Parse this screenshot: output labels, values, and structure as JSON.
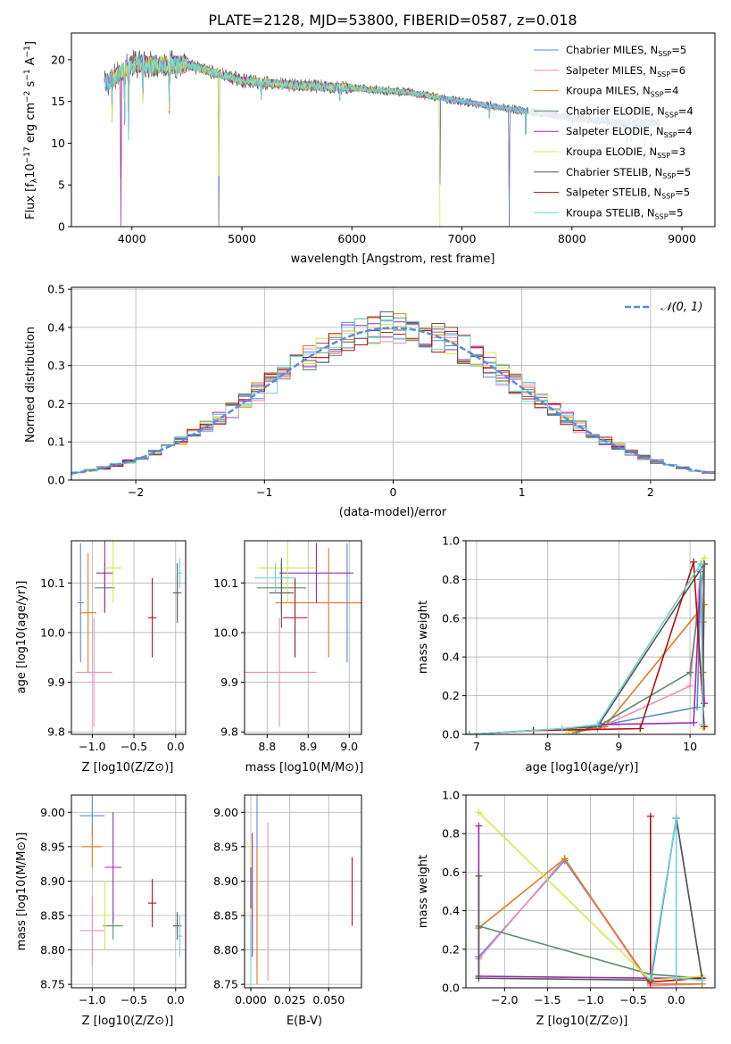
{
  "title": "PLATE=2128, MJD=53800, FIBERID=0587, z=0.018",
  "colors": {
    "chabrier_miles": "#5b8bd9",
    "salpeter_miles": "#f08cbf",
    "kroupa_miles": "#e07b24",
    "chabrier_elodie": "#5e8c6a",
    "salpeter_elodie": "#9b2db0",
    "kroupa_elodie": "#d4e84a",
    "chabrier_stelib": "#555555",
    "salpeter_stelib": "#b01010",
    "kroupa_stelib": "#6ed4d8",
    "gaussian": "#5b8bd9"
  },
  "legend_labels": [
    "Chabrier MILES, N",
    "Salpeter MILES, N",
    "Kroupa MILES, N",
    "Chabrier ELODIE, N",
    "Salpeter ELODIE, N",
    "Kroupa ELODIE, N",
    "Chabrier STELIB, N",
    "Salpeter STELIB, N",
    "Kroupa STELIB, N"
  ],
  "legend_sub": "SSP",
  "legend_counts": [
    "=5",
    "=6",
    "=4",
    "=4",
    "=4",
    "=3",
    "=5",
    "=5",
    "=5"
  ],
  "chart_data": [
    {
      "id": "spectrum",
      "type": "line",
      "xlabel_main": "wavelength [Angstrom, rest frame]",
      "ylabel_main": "Flux [f",
      "ylabel_lambda": "λ",
      "ylabel_mid": "10",
      "ylabel_exp1": "−17",
      "ylabel_unit": " erg cm",
      "ylabel_exp2": "−2",
      "ylabel_s": " s",
      "ylabel_exp3": "−1",
      "ylabel_A": " A",
      "ylabel_exp4": "−1",
      "ylabel_end": "]",
      "xlim": [
        3450,
        9300
      ],
      "ylim": [
        0,
        23.2
      ],
      "xticks": [
        4000,
        5000,
        6000,
        7000,
        8000,
        9000
      ],
      "yticks": [
        0,
        5,
        10,
        15,
        20
      ],
      "continuum": [
        [
          3750,
          17.0
        ],
        [
          4000,
          19.5
        ],
        [
          4500,
          19.4
        ],
        [
          5000,
          17.5
        ],
        [
          5500,
          16.9
        ],
        [
          6000,
          16.6
        ],
        [
          6500,
          16.1
        ],
        [
          7000,
          15.0
        ],
        [
          7500,
          14.0
        ],
        [
          8000,
          13.0
        ],
        [
          8500,
          12.4
        ],
        [
          8800,
          12.4
        ]
      ],
      "absorption_dips": [
        [
          3820,
          10.5
        ],
        [
          3900,
          0.0
        ],
        [
          3934,
          10.0
        ],
        [
          3970,
          7.0
        ],
        [
          4100,
          13.0
        ],
        [
          4340,
          11.0
        ],
        [
          4790,
          0.0
        ],
        [
          5175,
          14.0
        ],
        [
          5890,
          14.5
        ],
        [
          6560,
          15.5
        ],
        [
          6800,
          0.0
        ],
        [
          7250,
          12.5
        ],
        [
          7430,
          0.0
        ],
        [
          7580,
          8.0
        ],
        [
          8500,
          8.0
        ],
        [
          8540,
          8.0
        ],
        [
          8660,
          7.0
        ]
      ]
    },
    {
      "id": "residuals",
      "type": "histogram",
      "xlabel": "(data-model)/error",
      "ylabel": "Normed distribution",
      "xlim": [
        -2.5,
        2.5
      ],
      "ylim": [
        0,
        0.505
      ],
      "xticks": [
        -2,
        -1,
        0,
        1,
        2
      ],
      "yticks": [
        0.0,
        0.1,
        0.2,
        0.3,
        0.4,
        0.5
      ],
      "bin_width": 0.1,
      "legend": "𝒩(0, 1)",
      "gaussian": {
        "mu": 0,
        "sigma": 1
      }
    },
    {
      "id": "age_vs_Z",
      "type": "errorbar",
      "xlabel": "Z [log10(Z/Z⊙)]",
      "ylabel": "age  [log10(age/yr)]",
      "xlim": [
        -1.25,
        0.12
      ],
      "ylim": [
        9.795,
        10.185
      ],
      "xticks": [
        -1.0,
        -0.5,
        0.0
      ],
      "yticks": [
        9.8,
        9.9,
        10.0,
        10.1
      ],
      "points": [
        {
          "s": "chabrier_miles",
          "x": -1.14,
          "xerr": 0.04,
          "y": 10.06,
          "yerr": 0.12
        },
        {
          "s": "salpeter_miles",
          "x": -0.98,
          "xerr": 0.22,
          "y": 9.92,
          "yerr": 0.11
        },
        {
          "s": "kroupa_miles",
          "x": -1.05,
          "xerr": 0.1,
          "y": 10.04,
          "yerr": 0.12
        },
        {
          "s": "chabrier_elodie",
          "x": -0.85,
          "xerr": 0.12,
          "y": 10.09,
          "yerr": 0.05
        },
        {
          "s": "salpeter_elodie",
          "x": -0.85,
          "xerr": 0.1,
          "y": 10.12,
          "yerr": 0.08
        },
        {
          "s": "kroupa_elodie",
          "x": -0.75,
          "xerr": 0.1,
          "y": 10.13,
          "yerr": 0.07
        },
        {
          "s": "chabrier_stelib",
          "x": 0.02,
          "xerr": 0.05,
          "y": 10.08,
          "yerr": 0.06
        },
        {
          "s": "salpeter_stelib",
          "x": -0.28,
          "xerr": 0.05,
          "y": 10.03,
          "yerr": 0.08
        },
        {
          "s": "kroupa_stelib",
          "x": 0.05,
          "xerr": 0.03,
          "y": 10.12,
          "yerr": 0.03
        }
      ]
    },
    {
      "id": "age_vs_mass",
      "type": "errorbar",
      "xlabel": "mass [log10(M/M⊙)]",
      "ylabel": "",
      "xlim": [
        8.745,
        9.03
      ],
      "ylim": [
        9.795,
        10.185
      ],
      "xticks": [
        8.8,
        8.9,
        9.0
      ],
      "yticks": [
        9.8,
        9.9,
        10.0,
        10.1
      ],
      "points": [
        {
          "s": "chabrier_miles",
          "x": 8.995,
          "xerr": 0.03,
          "y": 10.06,
          "yerr": 0.12
        },
        {
          "s": "salpeter_miles",
          "x": 8.83,
          "xerr": 0.09,
          "y": 9.92,
          "yerr": 0.11
        },
        {
          "s": "kroupa_miles",
          "x": 8.95,
          "xerr": 0.13,
          "y": 10.06,
          "yerr": 0.11
        },
        {
          "s": "chabrier_elodie",
          "x": 8.835,
          "xerr": 0.06,
          "y": 10.09,
          "yerr": 0.05
        },
        {
          "s": "salpeter_elodie",
          "x": 8.92,
          "xerr": 0.09,
          "y": 10.12,
          "yerr": 0.06
        },
        {
          "s": "kroupa_elodie",
          "x": 8.85,
          "xerr": 0.07,
          "y": 10.13,
          "yerr": 0.07
        },
        {
          "s": "chabrier_stelib",
          "x": 8.835,
          "xerr": 0.03,
          "y": 10.08,
          "yerr": 0.07
        },
        {
          "s": "salpeter_stelib",
          "x": 8.868,
          "xerr": 0.03,
          "y": 10.03,
          "yerr": 0.08
        },
        {
          "s": "kroupa_stelib",
          "x": 8.82,
          "xerr": 0.05,
          "y": 10.11,
          "yerr": 0.03
        }
      ]
    },
    {
      "id": "weight_vs_age",
      "type": "line",
      "xlabel": "age  [log10(age/yr)]",
      "ylabel": "mass weight",
      "xlim": [
        6.85,
        10.35
      ],
      "ylim": [
        0,
        1.0
      ],
      "xticks": [
        7,
        8,
        9,
        10
      ],
      "yticks": [
        0.0,
        0.2,
        0.4,
        0.6,
        0.8,
        1.0
      ],
      "series": [
        {
          "s": "chabrier_miles",
          "x": [
            8.3,
            8.8,
            10.1,
            10.15,
            10.2
          ],
          "y": [
            0.01,
            0.05,
            0.14,
            0.8,
            0.16
          ]
        },
        {
          "s": "salpeter_miles",
          "x": [
            8.35,
            8.7,
            10.0,
            10.15,
            10.2
          ],
          "y": [
            0.01,
            0.03,
            0.25,
            0.85,
            0.16
          ]
        },
        {
          "s": "kroupa_miles",
          "x": [
            8.35,
            8.8,
            10.2,
            10.18
          ],
          "y": [
            0.01,
            0.04,
            0.67,
            0.32
          ]
        },
        {
          "s": "chabrier_elodie",
          "x": [
            8.4,
            8.75,
            10.0,
            10.2,
            10.18
          ],
          "y": [
            0.01,
            0.05,
            0.32,
            0.88,
            0.58
          ]
        },
        {
          "s": "salpeter_elodie",
          "x": [
            8.3,
            8.75,
            10.05,
            10.15,
            10.2
          ],
          "y": [
            0.01,
            0.05,
            0.06,
            0.84,
            0.16
          ]
        },
        {
          "s": "kroupa_elodie",
          "x": [
            8.3,
            8.7,
            10.2,
            10.18
          ],
          "y": [
            0.01,
            0.05,
            0.91,
            0.03
          ]
        },
        {
          "s": "chabrier_stelib",
          "x": [
            6.9,
            8.7,
            10.2,
            10.18
          ],
          "y": [
            0.0,
            0.04,
            0.88,
            0.05
          ]
        },
        {
          "s": "salpeter_stelib",
          "x": [
            6.9,
            7.8,
            9.3,
            10.05,
            10.2
          ],
          "y": [
            0.0,
            0.02,
            0.03,
            0.89,
            0.04
          ]
        },
        {
          "s": "kroupa_stelib",
          "x": [
            6.9,
            8.2,
            8.7,
            10.15,
            10.18
          ],
          "y": [
            0.0,
            0.03,
            0.05,
            0.88,
            0.05
          ]
        }
      ]
    },
    {
      "id": "mass_vs_Z",
      "type": "errorbar",
      "xlabel": "Z [log10(Z/Z⊙)]",
      "ylabel": "mass [log10(M/M⊙)]",
      "xlim": [
        -1.25,
        0.12
      ],
      "ylim": [
        8.745,
        9.025
      ],
      "xticks": [
        -1.0,
        -0.5,
        0.0
      ],
      "yticks": [
        8.75,
        8.8,
        8.85,
        8.9,
        8.95,
        9.0
      ],
      "points": [
        {
          "s": "chabrier_miles",
          "x": -1.0,
          "xerr": 0.15,
          "y": 8.995,
          "yerr": 0.03
        },
        {
          "s": "salpeter_miles",
          "x": -1.0,
          "xerr": 0.15,
          "y": 8.828,
          "yerr": 0.05
        },
        {
          "s": "kroupa_miles",
          "x": -1.0,
          "xerr": 0.12,
          "y": 8.95,
          "yerr": 0.03
        },
        {
          "s": "chabrier_elodie",
          "x": -0.75,
          "xerr": 0.12,
          "y": 8.835,
          "yerr": 0.02
        },
        {
          "s": "salpeter_elodie",
          "x": -0.75,
          "xerr": 0.1,
          "y": 8.92,
          "yerr": 0.08
        },
        {
          "s": "kroupa_elodie",
          "x": -0.85,
          "xerr": 0.1,
          "y": 8.85,
          "yerr": 0.05
        },
        {
          "s": "chabrier_stelib",
          "x": 0.02,
          "xerr": 0.05,
          "y": 8.835,
          "yerr": 0.02
        },
        {
          "s": "salpeter_stelib",
          "x": -0.28,
          "xerr": 0.05,
          "y": 8.868,
          "yerr": 0.035
        },
        {
          "s": "kroupa_stelib",
          "x": 0.05,
          "xerr": 0.03,
          "y": 8.82,
          "yerr": 0.03
        }
      ]
    },
    {
      "id": "mass_vs_ebv",
      "type": "errorbar",
      "xlabel": "E(B-V)",
      "ylabel": "",
      "xlim": [
        -0.004,
        0.071
      ],
      "ylim": [
        8.745,
        9.025
      ],
      "xticks": [
        0.0,
        0.025,
        0.05
      ],
      "xticklabels": [
        "0.000",
        "0.025",
        "0.050"
      ],
      "yticks": [
        8.75,
        8.8,
        8.85,
        8.9,
        8.95,
        9.0
      ],
      "points": [
        {
          "s": "chabrier_miles",
          "x": 0.004,
          "xerr": 0,
          "y": 8.9,
          "yerr": 0.125
        },
        {
          "s": "salpeter_miles",
          "x": 0.011,
          "xerr": 0,
          "y": 8.87,
          "yerr": 0.115
        },
        {
          "s": "kroupa_miles",
          "x": 0.004,
          "xerr": 0,
          "y": 8.85,
          "yerr": 0.1
        },
        {
          "s": "chabrier_elodie",
          "x": 0.0,
          "xerr": 0,
          "y": 8.86,
          "yerr": 0.06
        },
        {
          "s": "salpeter_elodie",
          "x": 0.001,
          "xerr": 0,
          "y": 8.88,
          "yerr": 0.09
        },
        {
          "s": "kroupa_elodie",
          "x": 0.0,
          "xerr": 0,
          "y": 8.86,
          "yerr": 0.1
        },
        {
          "s": "chabrier_stelib",
          "x": 0.0,
          "xerr": 0,
          "y": 8.89,
          "yerr": 0.03
        },
        {
          "s": "salpeter_stelib",
          "x": 0.065,
          "xerr": 0,
          "y": 8.885,
          "yerr": 0.05
        },
        {
          "s": "kroupa_stelib",
          "x": 0.0,
          "xerr": 0,
          "y": 8.8,
          "yerr": 0.05
        }
      ]
    },
    {
      "id": "weight_vs_Z",
      "type": "line",
      "xlabel": "Z [log10(Z/Z⊙)]",
      "ylabel": "mass weight",
      "xlim": [
        -2.45,
        0.45
      ],
      "ylim": [
        0,
        1.0
      ],
      "xticks": [
        -2.0,
        -1.5,
        -1.0,
        -0.5,
        0.0
      ],
      "yticks": [
        0.0,
        0.2,
        0.4,
        0.6,
        0.8,
        1.0
      ],
      "series": [
        {
          "s": "chabrier_miles",
          "x": [
            -2.3,
            -1.3,
            -0.3,
            0.0,
            0.3
          ],
          "y": [
            0.16,
            0.66,
            0.02,
            0.88,
            0.05
          ]
        },
        {
          "s": "salpeter_miles",
          "x": [
            -2.3,
            -1.3,
            -0.3,
            0.3
          ],
          "y": [
            0.15,
            0.67,
            0.01,
            0.02
          ]
        },
        {
          "s": "kroupa_miles",
          "x": [
            -2.3,
            -1.3,
            -0.3,
            0.3
          ],
          "y": [
            0.31,
            0.67,
            0.02,
            0.02
          ]
        },
        {
          "s": "chabrier_elodie",
          "x": [
            -2.3,
            -0.3,
            0.3
          ],
          "y": [
            0.32,
            0.07,
            0.05
          ]
        },
        {
          "s": "salpeter_elodie",
          "x": [
            -2.3,
            -2.3,
            -0.3,
            0.3
          ],
          "y": [
            0.84,
            0.06,
            0.05,
            0.05
          ]
        },
        {
          "s": "kroupa_elodie",
          "x": [
            -2.3,
            -0.3,
            0.3
          ],
          "y": [
            0.91,
            0.04,
            0.06
          ]
        },
        {
          "s": "chabrier_stelib",
          "x": [
            -2.3,
            -2.3,
            -0.3,
            0.0,
            0.3
          ],
          "y": [
            0.58,
            0.05,
            0.04,
            0.88,
            0.05
          ]
        },
        {
          "s": "salpeter_stelib",
          "x": [
            -0.3,
            -0.3,
            0.0,
            0.3
          ],
          "y": [
            0.89,
            0.03,
            0.04,
            0.05
          ]
        },
        {
          "s": "kroupa_stelib",
          "x": [
            -0.3,
            0.0,
            0.0,
            0.3
          ],
          "y": [
            0.05,
            0.88,
            0.05,
            0.04
          ]
        }
      ]
    }
  ]
}
